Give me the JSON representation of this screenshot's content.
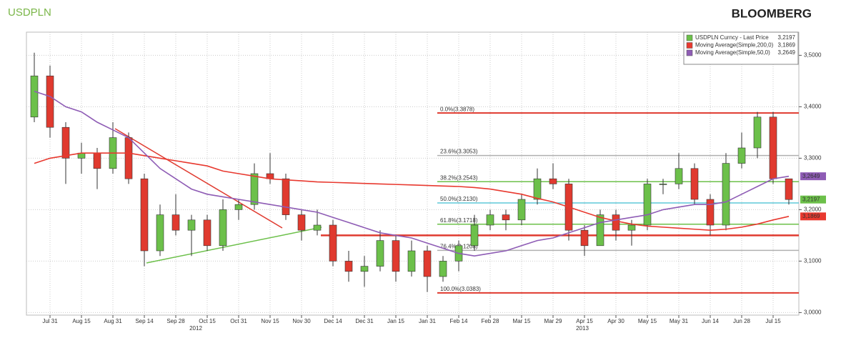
{
  "chart_data": {
    "type": "candlestick",
    "title": "USDPLN",
    "source": "BLOOMBERG",
    "categories": [
      null,
      "Jul 31",
      null,
      "Aug 15",
      null,
      "Aug 31",
      null,
      "Sep 14",
      null,
      "Sep 28",
      null,
      "Oct 15",
      null,
      "Oct 31",
      null,
      "Nov 15",
      null,
      "Nov 30",
      null,
      "Dec 14",
      null,
      "Dec 31",
      null,
      "Jan 15",
      null,
      "Jan 31",
      null,
      "Feb 14",
      null,
      "Feb 28",
      null,
      "Mar 15",
      null,
      "Mar 29",
      null,
      "Apr 15",
      null,
      "Apr 30",
      null,
      "May 15",
      null,
      "May 31",
      null,
      "Jun 14",
      null,
      "Jun 28",
      null,
      "Jul 15",
      null
    ],
    "x_years": [
      "2012",
      "2013"
    ],
    "series": [
      {
        "name": "USDPLN Curncy - Last Price",
        "color": "#6cc04a",
        "up_color": "#6cc04a",
        "down_color": "#e03a2f",
        "last_label": "3,2197",
        "open": [
          3.38,
          3.46,
          3.36,
          3.3,
          3.31,
          3.28,
          3.34,
          3.26,
          3.12,
          3.19,
          3.16,
          3.18,
          3.13,
          3.2,
          3.21,
          3.27,
          3.26,
          3.19,
          3.16,
          3.17,
          3.1,
          3.08,
          3.09,
          3.14,
          3.08,
          3.12,
          3.07,
          3.1,
          3.13,
          3.17,
          3.19,
          3.18,
          3.22,
          3.26,
          3.25,
          3.16,
          3.13,
          3.19,
          3.16,
          3.17,
          3.25,
          3.25,
          3.28,
          3.22,
          3.17,
          3.29,
          3.32,
          3.38,
          3.26
        ],
        "high": [
          3.505,
          3.48,
          3.37,
          3.33,
          3.32,
          3.37,
          3.35,
          3.27,
          3.21,
          3.23,
          3.19,
          3.19,
          3.22,
          3.22,
          3.29,
          3.31,
          3.27,
          3.2,
          3.2,
          3.18,
          3.12,
          3.11,
          3.16,
          3.15,
          3.14,
          3.13,
          3.11,
          3.14,
          3.19,
          3.2,
          3.2,
          3.23,
          3.28,
          3.29,
          3.26,
          3.17,
          3.2,
          3.2,
          3.18,
          3.26,
          3.26,
          3.31,
          3.29,
          3.23,
          3.31,
          3.35,
          3.39,
          3.39,
          3.26
        ],
        "low": [
          3.37,
          3.34,
          3.25,
          3.27,
          3.24,
          3.27,
          3.25,
          3.09,
          3.11,
          3.15,
          3.11,
          3.12,
          3.12,
          3.18,
          3.2,
          3.25,
          3.18,
          3.14,
          3.15,
          3.09,
          3.06,
          3.05,
          3.08,
          3.06,
          3.07,
          3.04,
          3.06,
          3.08,
          3.12,
          3.16,
          3.16,
          3.17,
          3.21,
          3.24,
          3.14,
          3.11,
          3.13,
          3.14,
          3.13,
          3.16,
          3.23,
          3.24,
          3.21,
          3.15,
          3.16,
          3.28,
          3.3,
          3.25,
          3.21
        ],
        "close": [
          3.46,
          3.36,
          3.3,
          3.31,
          3.28,
          3.34,
          3.26,
          3.12,
          3.19,
          3.16,
          3.18,
          3.13,
          3.2,
          3.21,
          3.27,
          3.26,
          3.19,
          3.16,
          3.17,
          3.1,
          3.08,
          3.09,
          3.14,
          3.08,
          3.12,
          3.07,
          3.1,
          3.13,
          3.17,
          3.19,
          3.18,
          3.22,
          3.26,
          3.25,
          3.16,
          3.13,
          3.19,
          3.16,
          3.17,
          3.25,
          3.25,
          3.28,
          3.22,
          3.17,
          3.29,
          3.32,
          3.38,
          3.26,
          3.2197
        ]
      },
      {
        "name": "Moving Average(Simple,200,0)",
        "color": "#e8392f",
        "last_label": "3,1869",
        "values": [
          3.29,
          3.3,
          3.305,
          3.31,
          3.31,
          3.31,
          3.31,
          3.305,
          3.3,
          3.295,
          3.29,
          3.285,
          3.275,
          3.27,
          3.265,
          3.26,
          3.258,
          3.256,
          3.254,
          3.253,
          3.252,
          3.251,
          3.25,
          3.249,
          3.248,
          3.247,
          3.246,
          3.245,
          3.243,
          3.24,
          3.235,
          3.23,
          3.222,
          3.215,
          3.205,
          3.195,
          3.185,
          3.178,
          3.172,
          3.168,
          3.166,
          3.164,
          3.162,
          3.16,
          3.162,
          3.166,
          3.172,
          3.18,
          3.1869
        ]
      },
      {
        "name": "Moving Average(Simple,50,0)",
        "color": "#8e5cb5",
        "last_label": "3,2649",
        "values": [
          3.43,
          3.42,
          3.4,
          3.39,
          3.37,
          3.355,
          3.34,
          3.31,
          3.28,
          3.26,
          3.24,
          3.23,
          3.225,
          3.22,
          3.215,
          3.21,
          3.205,
          3.2,
          3.195,
          3.185,
          3.175,
          3.165,
          3.155,
          3.15,
          3.145,
          3.135,
          3.125,
          3.115,
          3.11,
          3.115,
          3.12,
          3.13,
          3.14,
          3.145,
          3.155,
          3.165,
          3.175,
          3.18,
          3.185,
          3.19,
          3.2,
          3.205,
          3.21,
          3.21,
          3.215,
          3.23,
          3.245,
          3.26,
          3.2649
        ]
      }
    ],
    "legend_values": [
      "3,2197",
      "3,1869",
      "3,2649"
    ],
    "fib_levels": [
      {
        "label": "0.0%(3.3878)",
        "value": 3.3878,
        "color": "#e03a2f"
      },
      {
        "label": "23.6%(3.3053)",
        "value": 3.3053,
        "color": "#b0b0b0"
      },
      {
        "label": "38.2%(3.2543)",
        "value": 3.2543,
        "color": "#6cc04a"
      },
      {
        "label": "50.0%(3.2130)",
        "value": 3.213,
        "color": "#5ec8d8"
      },
      {
        "label": "61.8%(3.1718)",
        "value": 3.1718,
        "color": "#6cc04a"
      },
      {
        "label": "76.4%(3.1208)",
        "value": 3.1208,
        "color": "#b0b0b0"
      },
      {
        "label": "100.0%(3.0383)",
        "value": 3.0383,
        "color": "#e03a2f"
      }
    ],
    "support_level": {
      "value": 3.15,
      "color": "#e03a2f"
    },
    "ylim": [
      2.995,
      3.545
    ],
    "yticks": [
      {
        "value": 3.0,
        "label": "3,0000"
      },
      {
        "value": 3.1,
        "label": "3,1000"
      },
      {
        "value": 3.2,
        "label": "3,2000"
      },
      {
        "value": 3.3,
        "label": "3,3000"
      },
      {
        "value": 3.4,
        "label": "3,4000"
      },
      {
        "value": 3.5,
        "label": "3,5000"
      }
    ],
    "grid": true,
    "legend": "top-right"
  }
}
